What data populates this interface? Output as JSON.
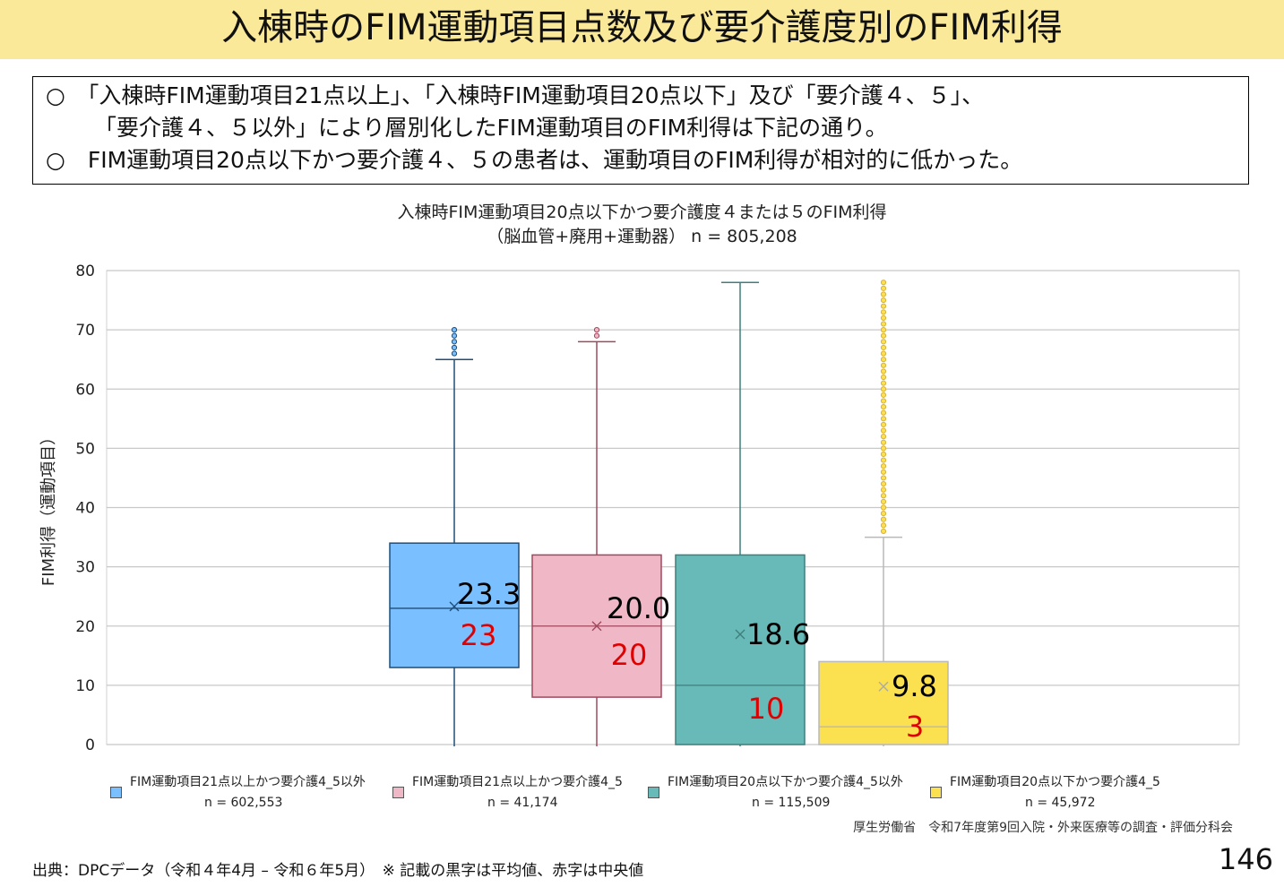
{
  "header": {
    "title": "入棟時のFIM運動項目点数及び要介護度別のFIM利得"
  },
  "summary": {
    "line1": "○　「入棟時FIM運動項目21点以上」、「入棟時FIM運動項目20点以下」及び「要介護４、５」、",
    "line2": "「要介護４、５以外」により層別化したFIM運動項目のFIM利得は下記の通り。",
    "line3": "○　FIM運動項目20点以下かつ要介護４、５の患者は、運動項目のFIM利得が相対的に低かった。"
  },
  "chart_data": {
    "type": "box",
    "title": "入棟時FIM運動項目20点以下かつ要介護度４または５のFIM利得",
    "subtitle": "（脳血管+廃用+運動器） n = 805,208",
    "ylabel": "FIM利得（運動項目）",
    "ylim": [
      0,
      80
    ],
    "yticks": [
      "0",
      "10",
      "20",
      "30",
      "40",
      "50",
      "60",
      "70",
      "80"
    ],
    "grid": true,
    "legend_position": "bottom",
    "series": [
      {
        "name": "FIM運動項目21点以上かつ要介護4_5以外",
        "n_label": "n = 602,553",
        "color": "#7abfff",
        "stroke": "#1f4e79",
        "whisker_low": 0,
        "q1": 13,
        "median": 23,
        "q3": 34,
        "whisker_high": 65,
        "mean": 23.3,
        "mean_label": "23.3",
        "median_label": "23",
        "outliers": [
          66,
          67,
          68,
          69,
          70
        ]
      },
      {
        "name": "FIM運動項目21点以上かつ要介護4_5",
        "n_label": "n = 41,174",
        "color": "#f0b8c6",
        "stroke": "#a0485e",
        "whisker_low": 0,
        "q1": 8,
        "median": 20,
        "q3": 32,
        "whisker_high": 68,
        "mean": 20.0,
        "mean_label": "20.0",
        "median_label": "20",
        "outliers": [
          69,
          70
        ]
      },
      {
        "name": "FIM運動項目20点以下かつ要介護4_5以外",
        "n_label": "n = 115,509",
        "color": "#68bab8",
        "stroke": "#3e7f7d",
        "whisker_low": 0,
        "q1": 0,
        "median": 10,
        "q3": 32,
        "whisker_high": 78,
        "mean": 18.6,
        "mean_label": "18.6",
        "median_label": "10",
        "outliers": []
      },
      {
        "name": "FIM運動項目20点以下かつ要介護4_5",
        "n_label": "n = 45,972",
        "color": "#fbe04f",
        "stroke": "#b9b9b9",
        "whisker_low": 0,
        "q1": 0,
        "median": 3,
        "q3": 14,
        "whisker_high": 35,
        "mean": 9.8,
        "mean_label": "9.8",
        "median_label": "3",
        "outliers": [
          36,
          37,
          38,
          39,
          40,
          41,
          42,
          43,
          44,
          45,
          46,
          47,
          48,
          49,
          50,
          51,
          52,
          53,
          54,
          55,
          56,
          57,
          58,
          59,
          60,
          61,
          62,
          63,
          64,
          65,
          66,
          67,
          68,
          69,
          70,
          71,
          72,
          73,
          74,
          75,
          76,
          77,
          78
        ]
      }
    ],
    "note": "※ 記載の黒字は平均値、赤字は中央値"
  },
  "credit": "厚生労働省　令和7年度第9回入院・外来医療等の調査・評価分科会",
  "footer": {
    "source": "出典：DPCデータ（令和４年4月 – 令和６年5月）　※ 記載の黒字は平均値、赤字は中央値",
    "page_number": "146"
  },
  "colors": {
    "title_bg": "#fbe99a",
    "mean_text": "#000000",
    "median_text": "#e00000"
  }
}
